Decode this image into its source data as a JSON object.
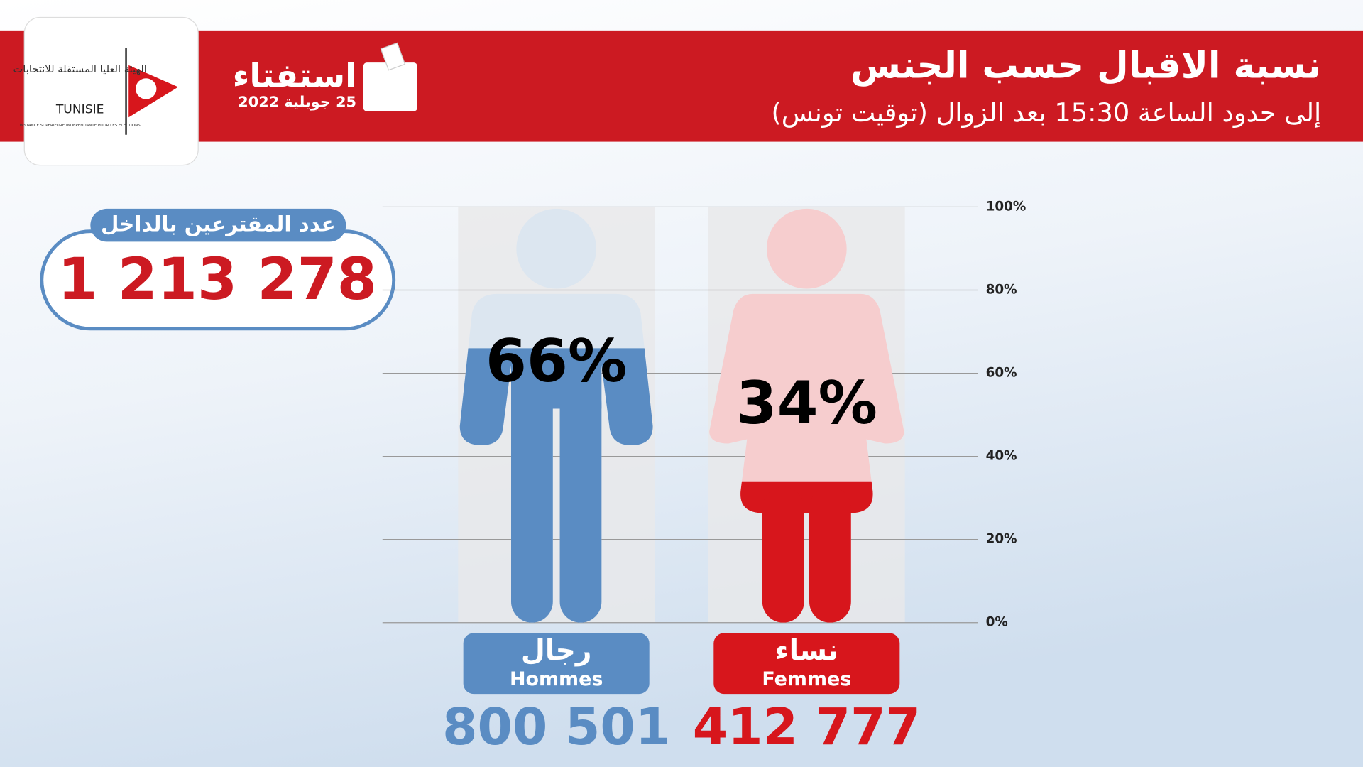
{
  "header": {
    "title": "نسبة الاقبال حسب الجنس",
    "subtitle": "إلى حدود الساعة 15:30 بعد الزوال (توقيت تونس)",
    "event": "استفتاء",
    "date": "25 جويلية 2022",
    "org_ar": "الهيئة العليا المستقلة للانتخابات",
    "org_short": "TUNISIE",
    "org_fr": "INSTANCE SUPERIEURE INDEPENDANTE POUR LES ELECTIONS"
  },
  "total": {
    "label": "عدد المقترعين بالداخل",
    "value": "1 213 278"
  },
  "chart_data": {
    "type": "bar",
    "categories": [
      "رجال",
      "نساء"
    ],
    "categories_fr": [
      "Hommes",
      "Femmes"
    ],
    "values": [
      66,
      34
    ],
    "value_labels": [
      "66%",
      "34%"
    ],
    "colors": [
      "#5a8cc3",
      "#d7161c"
    ],
    "counts": [
      "800 501",
      "412 777"
    ],
    "ylim": [
      0,
      100
    ],
    "yticks": [
      {
        "value": 0,
        "label": "0%"
      },
      {
        "value": 20,
        "label": "20%"
      },
      {
        "value": 40,
        "label": "40%"
      },
      {
        "value": 60,
        "label": "60%"
      },
      {
        "value": 80,
        "label": "80%"
      },
      {
        "value": 100,
        "label": "100%"
      }
    ],
    "grid": true
  }
}
